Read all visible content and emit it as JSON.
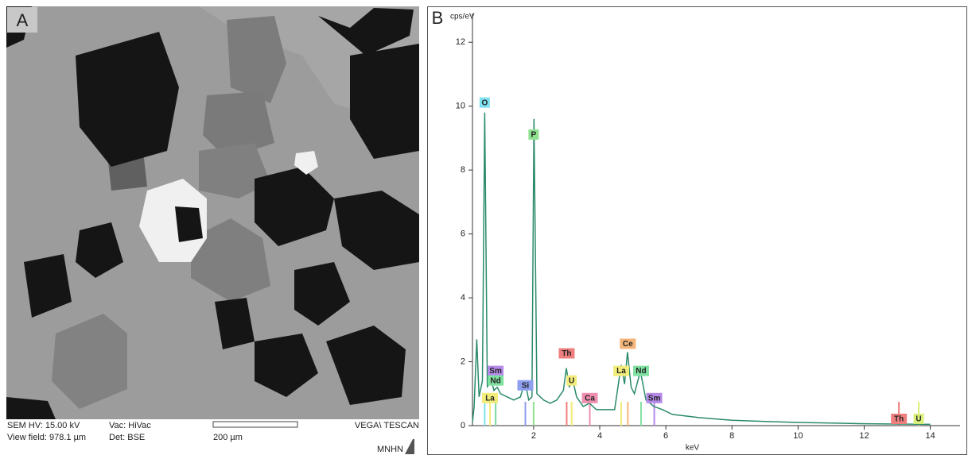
{
  "panel_a": {
    "label": "A",
    "hv": "SEM HV: 15.00 kV",
    "view_field": "View field: 978.1 µm",
    "vac": "Vac: HiVac",
    "det": "Det: BSE",
    "scale": "200 µm",
    "instrument": "VEGA\\ TESCAN",
    "lab": "MNHN"
  },
  "chart_data": {
    "type": "line",
    "panel_label": "B",
    "y_label": "cps/eV",
    "x_label": "keV",
    "xlim": [
      0.15,
      14.9
    ],
    "ylim": [
      0,
      12.9
    ],
    "xticks": [
      2,
      4,
      6,
      8,
      10,
      12,
      14
    ],
    "yticks": [
      0,
      2,
      4,
      6,
      8,
      10,
      12
    ],
    "series": [
      {
        "color": "#2b8a6c",
        "x": [
          0.15,
          0.2,
          0.28,
          0.35,
          0.45,
          0.52,
          0.6,
          0.7,
          0.8,
          0.9,
          1.0,
          1.2,
          1.4,
          1.6,
          1.74,
          1.85,
          1.95,
          2.01,
          2.1,
          2.3,
          2.5,
          2.7,
          2.9,
          2.99,
          3.08,
          3.17,
          3.3,
          3.5,
          3.69,
          3.9,
          4.2,
          4.45,
          4.65,
          4.75,
          4.84,
          4.95,
          5.05,
          5.23,
          5.4,
          5.64,
          5.9,
          6.2,
          6.6,
          7,
          8,
          9,
          10,
          11,
          12,
          13,
          14
        ],
        "values": [
          0.1,
          0.6,
          2.7,
          0.9,
          1.4,
          9.8,
          1.2,
          1.5,
          1.1,
          1.2,
          1.0,
          0.9,
          0.8,
          0.9,
          1.4,
          0.8,
          0.9,
          9.6,
          1.0,
          0.8,
          0.7,
          0.8,
          1.1,
          1.8,
          1.2,
          1.5,
          0.9,
          0.6,
          0.7,
          0.5,
          0.5,
          0.5,
          1.9,
          1.3,
          2.3,
          1.2,
          1.0,
          1.7,
          0.8,
          0.6,
          0.5,
          0.35,
          0.3,
          0.25,
          0.17,
          0.13,
          0.1,
          0.08,
          0.06,
          0.05,
          0.04
        ]
      }
    ],
    "annotations": [
      {
        "text": "O",
        "x": 0.52,
        "y": 10.1,
        "color": "#7fe0f0"
      },
      {
        "text": "P",
        "x": 2.0,
        "y": 9.1,
        "color": "#8fe08f"
      },
      {
        "text": "Sm",
        "x": 0.85,
        "y": 1.7,
        "color": "#b58ae8"
      },
      {
        "text": "Nd",
        "x": 0.85,
        "y": 1.4,
        "color": "#7fe0a0"
      },
      {
        "text": "La",
        "x": 0.68,
        "y": 0.85,
        "color": "#f2ec7a"
      },
      {
        "text": "Si",
        "x": 1.75,
        "y": 1.25,
        "color": "#8f9ff0"
      },
      {
        "text": "Th",
        "x": 3.0,
        "y": 2.25,
        "color": "#ef7f7f"
      },
      {
        "text": "U",
        "x": 3.15,
        "y": 1.4,
        "color": "#f2ec7a"
      },
      {
        "text": "Ca",
        "x": 3.7,
        "y": 0.85,
        "color": "#f08fb0"
      },
      {
        "text": "Ce",
        "x": 4.85,
        "y": 2.55,
        "color": "#f5b57a"
      },
      {
        "text": "La",
        "x": 4.65,
        "y": 1.7,
        "color": "#f2ec7a"
      },
      {
        "text": "Nd",
        "x": 5.25,
        "y": 1.7,
        "color": "#7fe0a0"
      },
      {
        "text": "Sm",
        "x": 5.65,
        "y": 0.85,
        "color": "#b58ae8"
      },
      {
        "text": "Th",
        "x": 13.05,
        "y": 0.2,
        "color": "#ef7f7f"
      },
      {
        "text": "U",
        "x": 13.65,
        "y": 0.2,
        "color": "#d8f07a"
      }
    ]
  }
}
